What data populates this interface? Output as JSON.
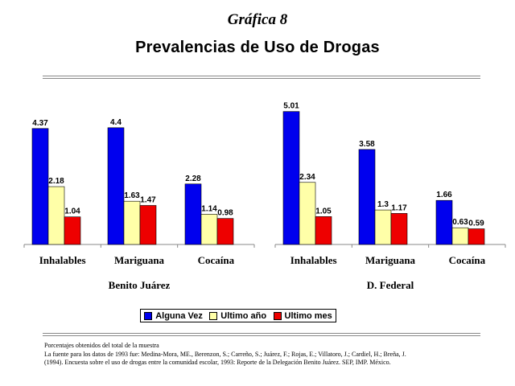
{
  "header": {
    "grafica_label": "Gráfica 8",
    "title": "Prevalencias de Uso de Drogas"
  },
  "legend": {
    "items": [
      {
        "label": "Alguna Vez",
        "color": "#0000ee"
      },
      {
        "label": "Ultimo año",
        "color": "#ffffa8"
      },
      {
        "label": "Ultimo mes",
        "color": "#ee0000"
      }
    ]
  },
  "chart_data": [
    {
      "type": "bar",
      "xlabel": "Benito Juárez",
      "categories": [
        "Inhalables",
        "Mariguana",
        "Cocaína"
      ],
      "series": [
        {
          "name": "Alguna Vez",
          "values": [
            4.37,
            4.4,
            2.28
          ],
          "labels": [
            "4.37",
            "4.4",
            "2.28"
          ],
          "color": "#0000ee"
        },
        {
          "name": "Ultimo año",
          "values": [
            2.18,
            1.63,
            1.14
          ],
          "labels": [
            "2.18",
            "1.63",
            "1.14"
          ],
          "color": "#ffffa8"
        },
        {
          "name": "Ultimo mes",
          "values": [
            1.04,
            1.47,
            0.98
          ],
          "labels": [
            "1.04",
            "1.47",
            "0.98"
          ],
          "color": "#ee0000"
        }
      ],
      "ylim": [
        0,
        5
      ],
      "grid": false,
      "legend_position": "bottom"
    },
    {
      "type": "bar",
      "xlabel": "D. Federal",
      "categories": [
        "Inhalables",
        "Mariguana",
        "Cocaína"
      ],
      "series": [
        {
          "name": "Alguna Vez",
          "values": [
            5.01,
            3.58,
            1.66
          ],
          "labels": [
            "5.01",
            "3.58",
            "1.66"
          ],
          "color": "#0000ee"
        },
        {
          "name": "Ultimo año",
          "values": [
            2.34,
            1.3,
            0.63
          ],
          "labels": [
            "2.34",
            "1.3",
            "0.63"
          ],
          "color": "#ffffa8"
        },
        {
          "name": "Ultimo mes",
          "values": [
            1.05,
            1.17,
            0.59
          ],
          "labels": [
            "1.05",
            "1.17",
            "0.59"
          ],
          "color": "#ee0000"
        }
      ],
      "ylim": [
        0,
        5.2
      ],
      "grid": false,
      "legend_position": "bottom"
    }
  ],
  "notes": [
    "Porcentajes obtenidos del total de la muestra",
    "La fuente para los datos de 1993 fue: Medina-Mora, ME., Berenzon, S.; Carreño, S.; Juárez, F.; Rojas, E.; Villatoro, J.; Cardiel, H.; Breña, J.",
    "(1994). Encuesta sobre el uso de drogas entre la comunidad escolar, 1993: Reporte de la Delegación Benito Juárez. SEP, IMP. México."
  ]
}
